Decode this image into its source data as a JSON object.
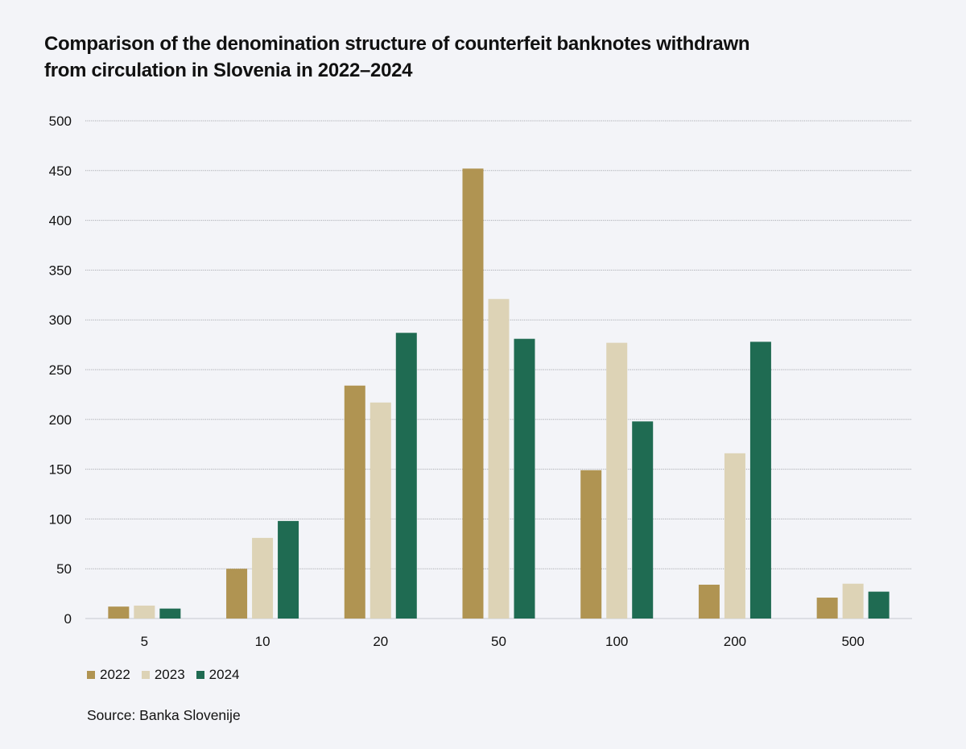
{
  "chart_data": {
    "type": "bar",
    "title": "Comparison of the denomination structure of counterfeit banknotes withdrawn from circulation in Slovenia in 2022–2024",
    "title_lines": [
      "Comparison of the denomination structure of counterfeit banknotes withdrawn",
      "from circulation in Slovenia in 2022–2024"
    ],
    "categories": [
      "5",
      "10",
      "20",
      "50",
      "100",
      "200",
      "500"
    ],
    "series": [
      {
        "name": "2022",
        "color": "#b09452",
        "values": [
          12,
          50,
          234,
          452,
          149,
          34,
          21
        ]
      },
      {
        "name": "2023",
        "color": "#ddd3b6",
        "values": [
          13,
          81,
          217,
          321,
          277,
          166,
          35
        ]
      },
      {
        "name": "2024",
        "color": "#1f6b52",
        "values": [
          10,
          98,
          287,
          281,
          198,
          278,
          27
        ]
      }
    ],
    "ylim": [
      0,
      500
    ],
    "yticks": [
      0,
      50,
      100,
      150,
      200,
      250,
      300,
      350,
      400,
      450,
      500
    ],
    "ytick_labels": [
      "0",
      "50",
      "100",
      "150",
      "200",
      "250",
      "300",
      "350",
      "400",
      "450",
      "500"
    ],
    "xlabel": "",
    "ylabel": "",
    "grid": true,
    "legend_position": "bottom-left"
  },
  "source": "Source: Banka Slovenije"
}
